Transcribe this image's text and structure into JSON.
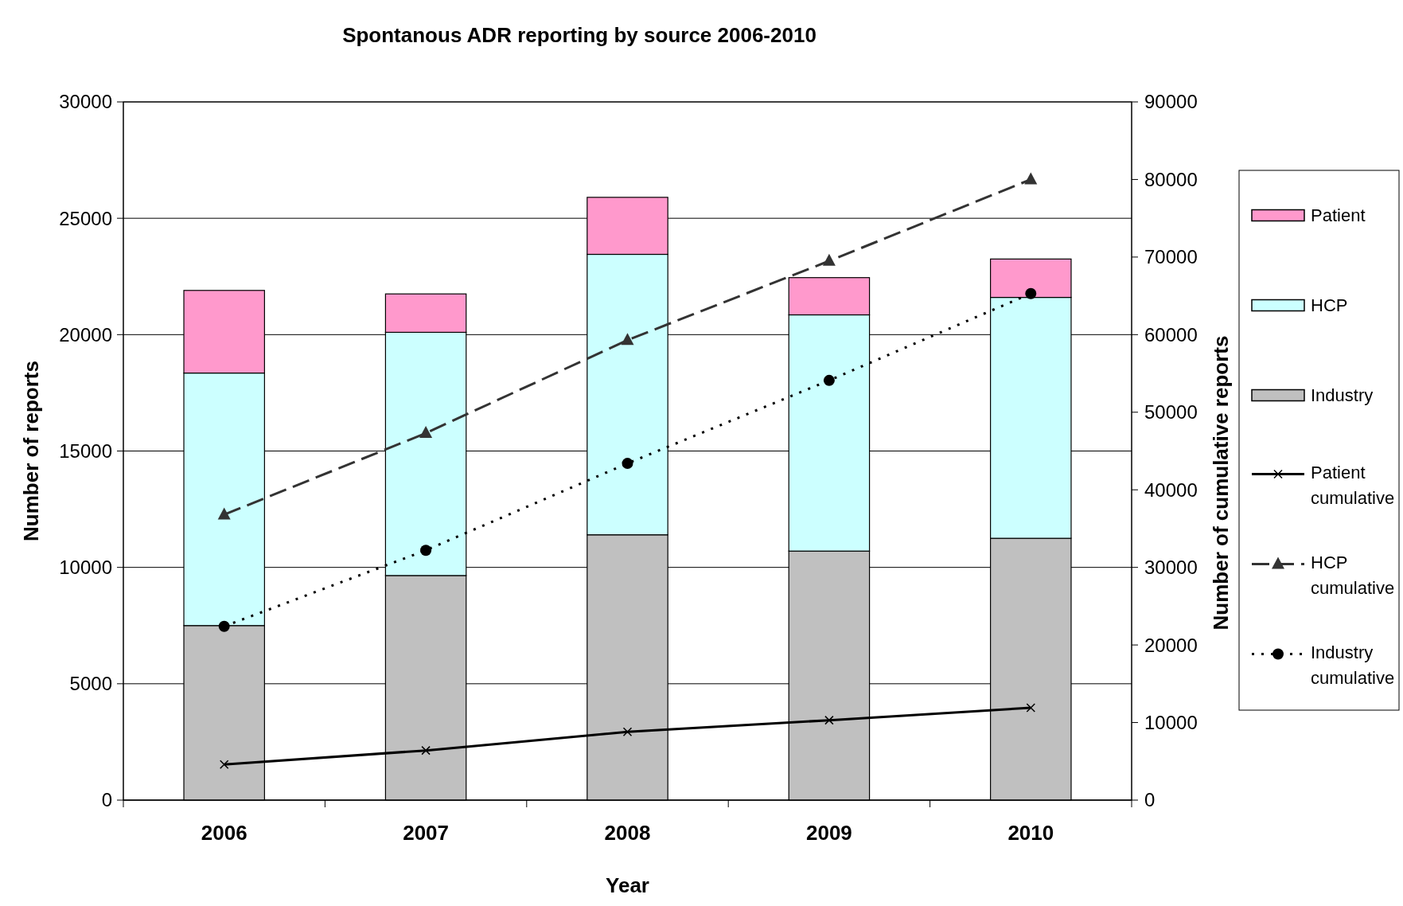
{
  "chart_data": {
    "type": "bar",
    "title": "Spontanous ADR reporting by source 2006-2010",
    "xlabel": "Year",
    "ylabel": "Number of reports",
    "y2label": "Number of cumulative reports",
    "categories": [
      "2006",
      "2007",
      "2008",
      "2009",
      "2010"
    ],
    "stacked": true,
    "ylim": [
      0,
      30000
    ],
    "yticks": [
      0,
      5000,
      10000,
      15000,
      20000,
      25000,
      30000
    ],
    "y2lim": [
      0,
      90000
    ],
    "y2ticks": [
      0,
      10000,
      20000,
      30000,
      40000,
      50000,
      60000,
      70000,
      80000,
      90000
    ],
    "grid": "y",
    "legend": "right",
    "series": [
      {
        "name": "Industry",
        "color": "#c0c0c0",
        "values": [
          7500,
          9650,
          11400,
          10700,
          11250
        ]
      },
      {
        "name": "HCP",
        "color": "#ccffff",
        "values": [
          10850,
          10450,
          12050,
          10150,
          10350
        ]
      },
      {
        "name": "Patient",
        "color": "#ff99cc",
        "values": [
          3550,
          1650,
          2450,
          1600,
          1650
        ]
      },
      {
        "name": "Patient cumulative",
        "type": "line",
        "axis": "y2",
        "color": "#000000",
        "line_style": "solid",
        "marker": "cross",
        "values": [
          4600,
          6400,
          8800,
          10300,
          11900
        ]
      },
      {
        "name": "HCP cumulative",
        "type": "line",
        "axis": "y2",
        "color": "#333333",
        "line_style": "dashed",
        "marker": "triangle",
        "values": [
          36800,
          47300,
          59300,
          69500,
          80000
        ]
      },
      {
        "name": "Industry cumulative",
        "type": "line",
        "axis": "y2",
        "color": "#000000",
        "line_style": "dotted",
        "marker": "circle",
        "values": [
          22400,
          32200,
          43400,
          54100,
          65300
        ]
      }
    ]
  }
}
